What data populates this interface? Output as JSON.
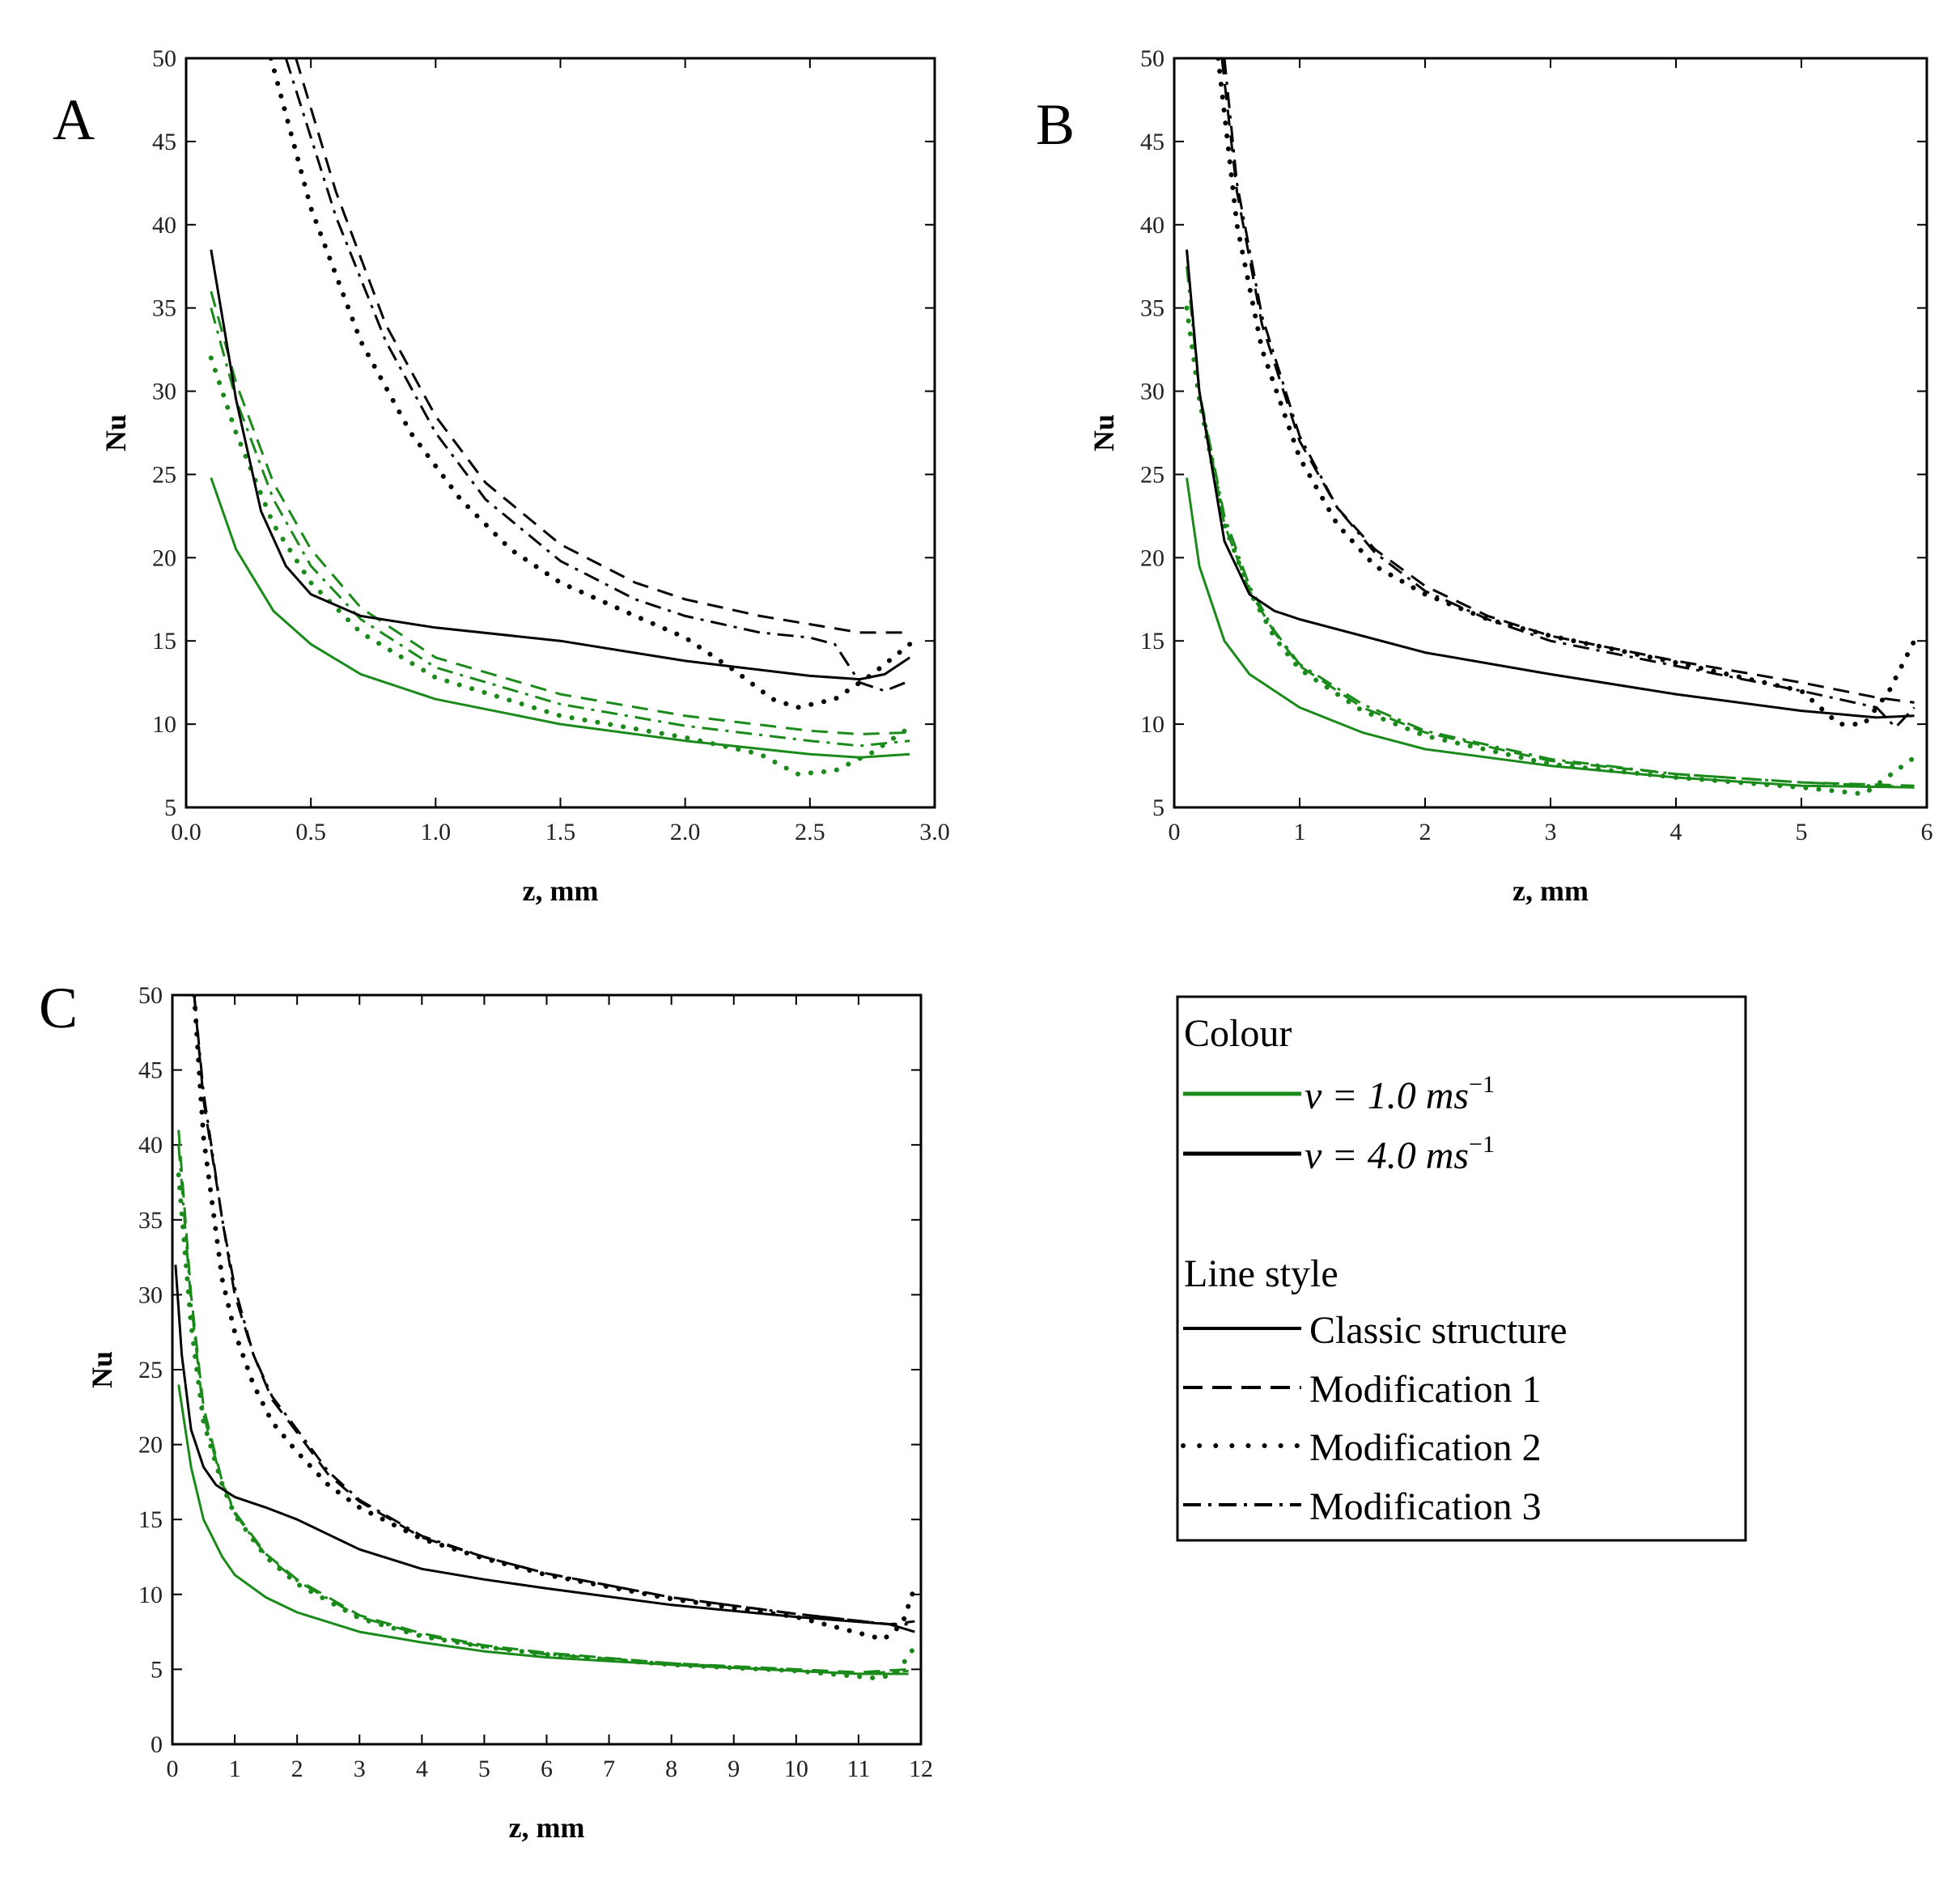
{
  "chart_data": [
    {
      "panel": "A",
      "type": "line",
      "xlabel": "z, mm",
      "ylabel": "Nu",
      "xlim": [
        0,
        3
      ],
      "ylim": [
        5,
        50
      ],
      "xticks": [
        "0.0",
        "0.5",
        "1.0",
        "1.5",
        "2.0",
        "2.5",
        "3.0"
      ],
      "xtick_values": [
        0,
        0.5,
        1,
        1.5,
        2,
        2.5,
        3
      ],
      "yticks": [
        "5",
        "10",
        "15",
        "20",
        "25",
        "30",
        "35",
        "40",
        "45",
        "50"
      ],
      "ytick_values": [
        5,
        10,
        15,
        20,
        25,
        30,
        35,
        40,
        45,
        50
      ],
      "series": [
        {
          "name": "v = 1.0 ms-1, Classic structure",
          "color": "#1a8a1a",
          "style": "solid",
          "x": [
            0.1,
            0.2,
            0.35,
            0.5,
            0.7,
            1.0,
            1.5,
            2.0,
            2.5,
            2.7,
            2.9
          ],
          "y": [
            24.8,
            20.5,
            16.8,
            14.8,
            13.0,
            11.5,
            10.0,
            9.0,
            8.2,
            8.0,
            8.2
          ]
        },
        {
          "name": "v = 1.0 ms-1, Modification 1",
          "color": "#1a8a1a",
          "style": "dash",
          "x": [
            0.1,
            0.2,
            0.35,
            0.5,
            0.7,
            1.0,
            1.5,
            2.0,
            2.5,
            2.7,
            2.9
          ],
          "y": [
            36.0,
            30.5,
            24.5,
            20.5,
            17.0,
            14.0,
            11.8,
            10.5,
            9.6,
            9.4,
            9.5
          ]
        },
        {
          "name": "v = 1.0 ms-1, Modification 2",
          "color": "#1a8a1a",
          "style": "dot",
          "x": [
            0.1,
            0.2,
            0.35,
            0.5,
            0.7,
            1.0,
            1.5,
            2.0,
            2.3,
            2.45,
            2.6,
            2.75,
            2.9
          ],
          "y": [
            32.0,
            27.5,
            22.0,
            18.5,
            15.5,
            12.8,
            10.5,
            9.2,
            8.2,
            7.0,
            7.2,
            8.3,
            9.8
          ]
        },
        {
          "name": "v = 1.0 ms-1, Modification 3",
          "color": "#1a8a1a",
          "style": "dashdot",
          "x": [
            0.1,
            0.2,
            0.35,
            0.5,
            0.7,
            1.0,
            1.5,
            2.0,
            2.5,
            2.7,
            2.9
          ],
          "y": [
            35.0,
            29.5,
            23.5,
            19.5,
            16.3,
            13.4,
            11.2,
            9.9,
            9.0,
            8.7,
            9.0
          ]
        },
        {
          "name": "v = 4.0 ms-1, Classic structure",
          "color": "#000000",
          "style": "solid",
          "x": [
            0.1,
            0.15,
            0.2,
            0.3,
            0.4,
            0.5,
            0.7,
            1.0,
            1.5,
            2.0,
            2.5,
            2.7,
            2.8,
            2.9
          ],
          "y": [
            38.5,
            34.0,
            29.5,
            22.8,
            19.5,
            17.8,
            16.5,
            15.8,
            15.0,
            13.8,
            12.9,
            12.7,
            13.0,
            14.0
          ]
        },
        {
          "name": "v = 4.0 ms-1, Modification 1",
          "color": "#000000",
          "style": "dash",
          "x": [
            0.44,
            0.6,
            0.8,
            1.0,
            1.2,
            1.5,
            1.8,
            2.0,
            2.3,
            2.5,
            2.7,
            2.8,
            2.87
          ],
          "y": [
            50.0,
            42.0,
            34.0,
            28.5,
            24.5,
            20.8,
            18.5,
            17.5,
            16.5,
            16.0,
            15.5,
            15.5,
            15.5
          ]
        },
        {
          "name": "v = 4.0 ms-1, Modification 2",
          "color": "#000000",
          "style": "dot",
          "x": [
            0.34,
            0.5,
            0.7,
            0.9,
            1.1,
            1.3,
            1.5,
            1.8,
            2.0,
            2.2,
            2.35,
            2.45,
            2.6,
            2.75,
            2.9
          ],
          "y": [
            50.0,
            41.0,
            33.0,
            27.5,
            23.5,
            20.5,
            18.5,
            16.5,
            15.2,
            13.2,
            11.5,
            11.0,
            11.5,
            13.0,
            14.8
          ]
        },
        {
          "name": "v = 4.0 ms-1, Modification 3",
          "color": "#000000",
          "style": "dashdot",
          "x": [
            0.4,
            0.6,
            0.8,
            1.0,
            1.2,
            1.5,
            1.8,
            2.0,
            2.3,
            2.5,
            2.6,
            2.7,
            2.8,
            2.9
          ],
          "y": [
            50.0,
            40.5,
            33.0,
            27.5,
            23.5,
            19.8,
            17.5,
            16.5,
            15.5,
            15.2,
            14.8,
            12.5,
            12.0,
            12.6
          ]
        }
      ]
    },
    {
      "panel": "B",
      "type": "line",
      "xlabel": "z, mm",
      "ylabel": "Nu",
      "xlim": [
        0,
        6
      ],
      "ylim": [
        5,
        50
      ],
      "xticks": [
        "0",
        "1",
        "2",
        "3",
        "4",
        "5",
        "6"
      ],
      "xtick_values": [
        0,
        1,
        2,
        3,
        4,
        5,
        6
      ],
      "yticks": [
        "5",
        "10",
        "15",
        "20",
        "25",
        "30",
        "35",
        "40",
        "45",
        "50"
      ],
      "ytick_values": [
        5,
        10,
        15,
        20,
        25,
        30,
        35,
        40,
        45,
        50
      ],
      "series": [
        {
          "name": "v = 1.0 ms-1, Classic structure",
          "color": "#1a8a1a",
          "style": "solid",
          "x": [
            0.1,
            0.2,
            0.4,
            0.6,
            1.0,
            1.5,
            2.0,
            3.0,
            4.0,
            5.0,
            5.9
          ],
          "y": [
            24.8,
            19.5,
            15.0,
            13.0,
            11.0,
            9.5,
            8.5,
            7.5,
            6.8,
            6.3,
            6.2
          ]
        },
        {
          "name": "v = 1.0 ms-1, Modification 1",
          "color": "#1a8a1a",
          "style": "dash",
          "x": [
            0.1,
            0.2,
            0.4,
            0.6,
            0.8,
            1.0,
            1.5,
            2.0,
            3.0,
            4.0,
            5.0,
            5.9
          ],
          "y": [
            38.5,
            30.0,
            22.0,
            18.0,
            15.5,
            13.5,
            11.0,
            9.5,
            7.8,
            7.0,
            6.5,
            6.3
          ]
        },
        {
          "name": "v = 1.0 ms-1, Modification 2",
          "color": "#1a8a1a",
          "style": "dot",
          "x": [
            0.1,
            0.2,
            0.4,
            0.6,
            0.8,
            1.0,
            1.5,
            2.0,
            3.0,
            4.0,
            5.0,
            5.5,
            5.9
          ],
          "y": [
            35.0,
            29.5,
            22.0,
            18.0,
            15.2,
            13.3,
            10.8,
            9.3,
            7.6,
            6.8,
            6.2,
            5.8,
            8.0
          ]
        },
        {
          "name": "v = 1.0 ms-1, Modification 3",
          "color": "#1a8a1a",
          "style": "dashdot",
          "x": [
            0.1,
            0.2,
            0.4,
            0.6,
            0.8,
            1.0,
            1.5,
            2.0,
            3.0,
            4.0,
            5.0,
            5.9
          ],
          "y": [
            37.5,
            30.0,
            22.5,
            18.3,
            15.6,
            13.6,
            11.2,
            9.6,
            7.9,
            7.0,
            6.5,
            6.2
          ]
        },
        {
          "name": "v = 4.0 ms-1, Classic structure",
          "color": "#000000",
          "style": "solid",
          "x": [
            0.1,
            0.2,
            0.4,
            0.6,
            0.8,
            1.0,
            1.5,
            2.0,
            3.0,
            4.0,
            5.0,
            5.6,
            5.9
          ],
          "y": [
            38.5,
            30.0,
            21.0,
            17.8,
            16.8,
            16.3,
            15.3,
            14.3,
            13.0,
            11.8,
            10.8,
            10.4,
            10.5
          ]
        },
        {
          "name": "v = 4.0 ms-1, Modification 1",
          "color": "#000000",
          "style": "dash",
          "x": [
            0.38,
            0.5,
            0.7,
            1.0,
            1.3,
            1.6,
            2.0,
            2.5,
            3.0,
            4.0,
            5.0,
            5.6,
            5.9
          ],
          "y": [
            50.0,
            42.0,
            34.0,
            27.0,
            23.0,
            20.5,
            18.3,
            16.5,
            15.3,
            13.8,
            12.5,
            11.6,
            11.3
          ]
        },
        {
          "name": "v = 4.0 ms-1, Modification 2",
          "color": "#000000",
          "style": "dot",
          "x": [
            0.35,
            0.5,
            0.7,
            1.0,
            1.3,
            1.6,
            2.0,
            2.5,
            3.0,
            4.0,
            5.0,
            5.3,
            5.5,
            5.7,
            5.9
          ],
          "y": [
            50.0,
            40.0,
            32.5,
            26.0,
            22.0,
            19.5,
            17.8,
            16.3,
            15.3,
            13.7,
            12.0,
            10.0,
            10.0,
            12.0,
            15.0
          ]
        },
        {
          "name": "v = 4.0 ms-1, Modification 3",
          "color": "#000000",
          "style": "dashdot",
          "x": [
            0.4,
            0.5,
            0.7,
            1.0,
            1.3,
            1.6,
            2.0,
            2.5,
            3.0,
            4.0,
            5.0,
            5.6,
            5.75,
            5.9
          ],
          "y": [
            50.0,
            42.5,
            34.5,
            27.3,
            23.0,
            20.3,
            18.0,
            16.3,
            15.0,
            13.5,
            12.0,
            11.0,
            9.8,
            11.0
          ]
        }
      ]
    },
    {
      "panel": "C",
      "type": "line",
      "xlabel": "z, mm",
      "ylabel": "Nu",
      "xlim": [
        0,
        12
      ],
      "ylim": [
        0,
        50
      ],
      "xticks": [
        "0",
        "1",
        "2",
        "3",
        "4",
        "5",
        "6",
        "7",
        "8",
        "9",
        "10",
        "11",
        "12"
      ],
      "xtick_values": [
        0,
        1,
        2,
        3,
        4,
        5,
        6,
        7,
        8,
        9,
        10,
        11,
        12
      ],
      "yticks": [
        "0",
        "5",
        "10",
        "15",
        "20",
        "25",
        "30",
        "35",
        "40",
        "45",
        "50"
      ],
      "ytick_values": [
        0,
        5,
        10,
        15,
        20,
        25,
        30,
        35,
        40,
        45,
        50
      ],
      "series": [
        {
          "name": "v = 1.0 ms-1, Classic structure",
          "color": "#1a8a1a",
          "style": "solid",
          "x": [
            0.1,
            0.3,
            0.5,
            0.8,
            1.0,
            1.5,
            2.0,
            3.0,
            4.0,
            5.0,
            6.0,
            8.0,
            10.0,
            11.0,
            11.8
          ],
          "y": [
            24.0,
            18.5,
            15.0,
            12.5,
            11.3,
            9.8,
            8.8,
            7.5,
            6.8,
            6.2,
            5.8,
            5.3,
            4.9,
            4.7,
            4.7
          ]
        },
        {
          "name": "v = 1.0 ms-1, Modification 1",
          "color": "#1a8a1a",
          "style": "dash",
          "x": [
            0.1,
            0.3,
            0.5,
            0.8,
            1.0,
            1.5,
            2.0,
            3.0,
            4.0,
            5.0,
            6.0,
            8.0,
            10.0,
            11.0,
            11.8
          ],
          "y": [
            41.0,
            30.0,
            22.5,
            17.5,
            15.5,
            12.7,
            11.0,
            8.6,
            7.4,
            6.6,
            6.1,
            5.4,
            5.0,
            4.8,
            5.0
          ]
        },
        {
          "name": "v = 1.0 ms-1, Modification 2",
          "color": "#1a8a1a",
          "style": "dot",
          "x": [
            0.1,
            0.3,
            0.5,
            0.8,
            1.0,
            1.5,
            2.0,
            3.0,
            4.0,
            5.0,
            6.0,
            8.0,
            10.0,
            11.3,
            11.6,
            11.9
          ],
          "y": [
            38.0,
            28.0,
            21.5,
            17.3,
            15.3,
            12.5,
            10.7,
            8.4,
            7.2,
            6.5,
            6.0,
            5.3,
            4.9,
            4.4,
            4.7,
            6.5
          ]
        },
        {
          "name": "v = 1.0 ms-1, Modification 3",
          "color": "#1a8a1a",
          "style": "dashdot",
          "x": [
            0.1,
            0.3,
            0.5,
            0.8,
            1.0,
            1.5,
            2.0,
            3.0,
            4.0,
            5.0,
            6.0,
            8.0,
            10.0,
            11.0,
            11.8
          ],
          "y": [
            40.0,
            29.5,
            22.0,
            17.4,
            15.4,
            12.6,
            10.9,
            8.5,
            7.3,
            6.5,
            6.0,
            5.4,
            4.9,
            4.7,
            4.9
          ]
        },
        {
          "name": "v = 4.0 ms-1, Classic structure",
          "color": "#000000",
          "style": "solid",
          "x": [
            0.05,
            0.15,
            0.3,
            0.5,
            0.7,
            1.0,
            1.5,
            2.0,
            2.5,
            3.0,
            4.0,
            5.0,
            6.0,
            8.0,
            10.0,
            11.5,
            11.9
          ],
          "y": [
            32.0,
            26.0,
            21.0,
            18.5,
            17.3,
            16.5,
            15.8,
            15.0,
            14.0,
            13.0,
            11.7,
            11.0,
            10.4,
            9.3,
            8.5,
            8.0,
            7.5
          ]
        },
        {
          "name": "v = 4.0 ms-1, Modification 1",
          "color": "#000000",
          "style": "dash",
          "x": [
            0.35,
            0.5,
            0.8,
            1.0,
            1.3,
            1.6,
            2.0,
            2.5,
            3.0,
            4.0,
            5.0,
            6.0,
            8.0,
            10.0,
            11.5,
            11.9
          ],
          "y": [
            50.0,
            43.0,
            35.0,
            30.0,
            26.0,
            23.0,
            20.8,
            18.0,
            16.2,
            13.8,
            12.5,
            11.4,
            9.8,
            8.7,
            8.0,
            8.2
          ]
        },
        {
          "name": "v = 4.0 ms-1, Modification 2",
          "color": "#000000",
          "style": "dot",
          "x": [
            0.35,
            0.5,
            0.8,
            1.0,
            1.3,
            1.6,
            2.0,
            2.5,
            3.0,
            4.0,
            5.0,
            6.0,
            8.0,
            10.0,
            11.4,
            11.7,
            11.9
          ],
          "y": [
            50.0,
            40.5,
            31.0,
            27.5,
            24.0,
            21.5,
            19.5,
            17.3,
            15.8,
            13.7,
            12.4,
            11.3,
            9.7,
            8.5,
            7.0,
            8.0,
            10.5
          ]
        },
        {
          "name": "v = 4.0 ms-1, Modification 3",
          "color": "#000000",
          "style": "dashdot",
          "x": [
            0.35,
            0.5,
            0.8,
            1.0,
            1.3,
            1.6,
            2.0,
            2.5,
            3.0,
            4.0,
            5.0,
            6.0,
            8.0,
            10.0,
            11.5,
            11.9
          ],
          "y": [
            50.0,
            43.5,
            35.0,
            30.5,
            26.0,
            23.2,
            21.0,
            18.2,
            16.3,
            13.9,
            12.5,
            11.4,
            9.8,
            8.7,
            8.0,
            8.0
          ]
        }
      ]
    }
  ],
  "legend": {
    "colour_heading": "Colour",
    "colour_items": [
      {
        "color": "#1a8a1a",
        "label_main": "v = 1.0 ms",
        "sup": "−1"
      },
      {
        "color": "#000000",
        "label_main": "v = 4.0 ms",
        "sup": "−1"
      }
    ],
    "style_heading": "Line style",
    "style_items": [
      {
        "style": "solid",
        "label": "Classic structure"
      },
      {
        "style": "dash",
        "label": "Modification 1"
      },
      {
        "style": "dot",
        "label": "Modification 2"
      },
      {
        "style": "dashdot",
        "label": "Modification 3"
      }
    ]
  },
  "colors": {
    "green": "#1a8a1a",
    "black": "#000000"
  }
}
